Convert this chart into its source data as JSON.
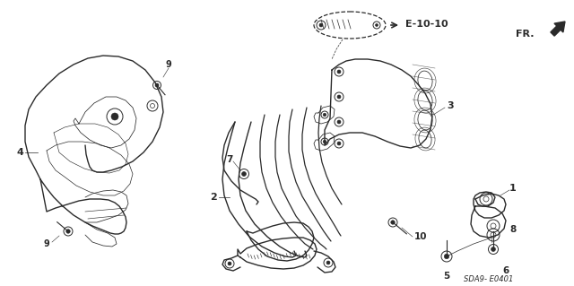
{
  "bg_color": "#ffffff",
  "lc": "#2a2a2a",
  "lw_main": 1.0,
  "lw_thin": 0.55,
  "diagram_code": "SDA9- E0401",
  "ref_label": "E-10-10",
  "fr_label": "FR.",
  "figsize": [
    6.4,
    3.19
  ],
  "dpi": 100
}
